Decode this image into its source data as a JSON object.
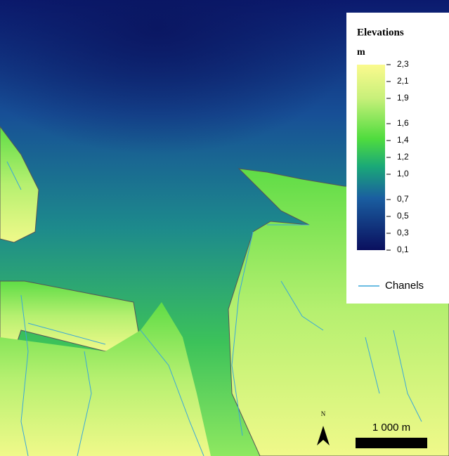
{
  "legend": {
    "title": "Elevations",
    "unit": "m",
    "ticks": [
      {
        "value": 2.3,
        "label": "2,3"
      },
      {
        "value": 2.1,
        "label": "2,1"
      },
      {
        "value": 1.9,
        "label": "1,9"
      },
      {
        "value": 1.6,
        "label": "1,6"
      },
      {
        "value": 1.4,
        "label": "1,4"
      },
      {
        "value": 1.2,
        "label": "1,2"
      },
      {
        "value": 1.0,
        "label": "1,0"
      },
      {
        "value": 0.7,
        "label": "0,7"
      },
      {
        "value": 0.5,
        "label": "0,5"
      },
      {
        "value": 0.3,
        "label": "0,3"
      },
      {
        "value": 0.1,
        "label": "0,1"
      }
    ],
    "channels_label": "Chanels"
  },
  "north_label": "N",
  "scale_label": "1 000 m"
}
